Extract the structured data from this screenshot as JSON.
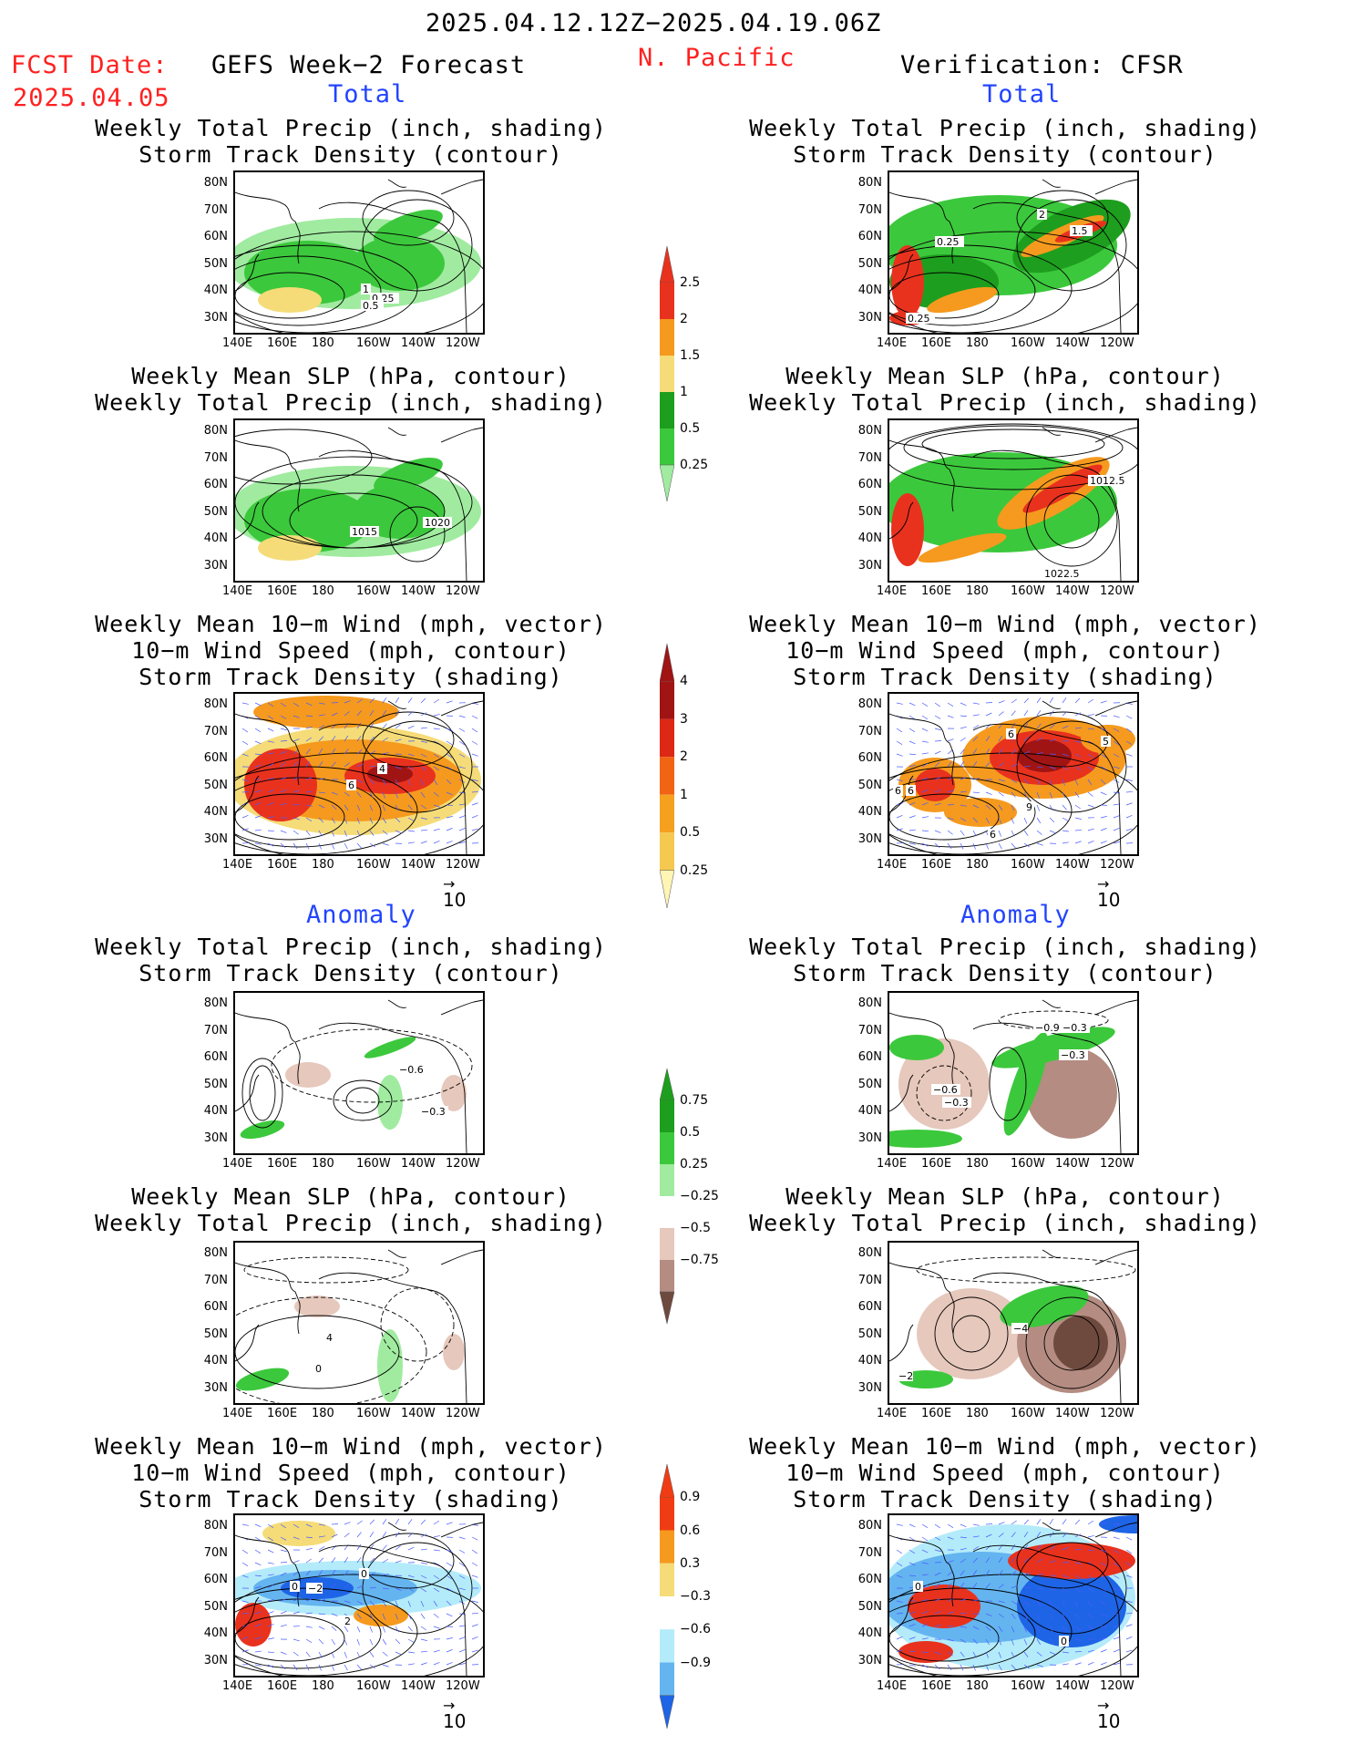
{
  "header": {
    "date_range": "2025.04.12.12Z−2025.04.19.06Z",
    "fcst_date_label": "FCST Date:",
    "fcst_date_value": "2025.04.05",
    "left_model": "GEFS Week−2 Forecast",
    "region": "N. Pacific",
    "right_model": "Verification: CFSR",
    "section_total": "Total",
    "section_anomaly": "Anomaly"
  },
  "titles": {
    "precip_storm": [
      "Weekly Total Precip (inch, shading)",
      "Storm Track Density (contour)"
    ],
    "slp_precip": [
      "Weekly Mean SLP (hPa, contour)",
      "Weekly Total Precip (inch, shading)"
    ],
    "wind_storm": [
      "Weekly Mean 10−m Wind (mph, vector)",
      "10−m Wind Speed (mph, contour)",
      "Storm Track Density (shading)"
    ]
  },
  "axes": {
    "lat": [
      "80N",
      "70N",
      "60N",
      "50N",
      "40N",
      "30N"
    ],
    "lon": [
      "140E",
      "160E",
      "180",
      "160W",
      "140W",
      "120W"
    ]
  },
  "vector_ref": "10",
  "colorbars": {
    "precip_total": {
      "labels": [
        "2.5",
        "2",
        "1.5",
        "1",
        "0.5",
        "0.25"
      ],
      "colors": [
        "#e8321e",
        "#f59a1e",
        "#f5dc78",
        "#1e9e1e",
        "#3cc83c",
        "#a0eba0"
      ]
    },
    "storm_total": {
      "labels": [
        "4",
        "3",
        "2",
        "1",
        "0.5",
        "0.25"
      ],
      "colors": [
        "#a01414",
        "#dc2814",
        "#f06414",
        "#f5a01e",
        "#f5c850",
        "#fff5b4"
      ]
    },
    "precip_anom": {
      "labels": [
        "0.75",
        "0.5",
        "0.25",
        "−0.25",
        "−0.5",
        "−0.75"
      ],
      "colors": [
        "#1e9e1e",
        "#3cc83c",
        "#a0eba0",
        "#ffffff",
        "#e6c8bc",
        "#b48c82",
        "#6e4a3e"
      ]
    },
    "storm_anom": {
      "labels": [
        "0.9",
        "0.6",
        "0.3",
        "−0.3",
        "−0.6",
        "−0.9"
      ],
      "colors": [
        "#f03c14",
        "#f59a1e",
        "#f5dc78",
        "#ffffff",
        "#b4ebfa",
        "#64b4f0",
        "#1e64e6"
      ]
    }
  },
  "contour_labels": {
    "p1": [
      "1",
      "0.25",
      "0.5"
    ],
    "p2": [
      "0.25",
      "2",
      "1.5",
      "0.25"
    ],
    "p3": [
      "1015",
      "1020"
    ],
    "p4": [
      "1012.5",
      "1022.5"
    ],
    "p5": [
      "4",
      "6"
    ],
    "p6": [
      "6",
      "9",
      "6",
      "5",
      "6",
      "6"
    ],
    "p7": [
      "−0.6",
      "−0.3"
    ],
    "p8": [
      "−0.9",
      "−0.3",
      "−0.3",
      "−0.6",
      "−0.3"
    ],
    "p9": [
      "4",
      "0"
    ],
    "p10": [
      "−4",
      "−2"
    ],
    "p11": [
      "0",
      "−2",
      "0",
      "2"
    ],
    "p12": [
      "0",
      "0"
    ]
  }
}
